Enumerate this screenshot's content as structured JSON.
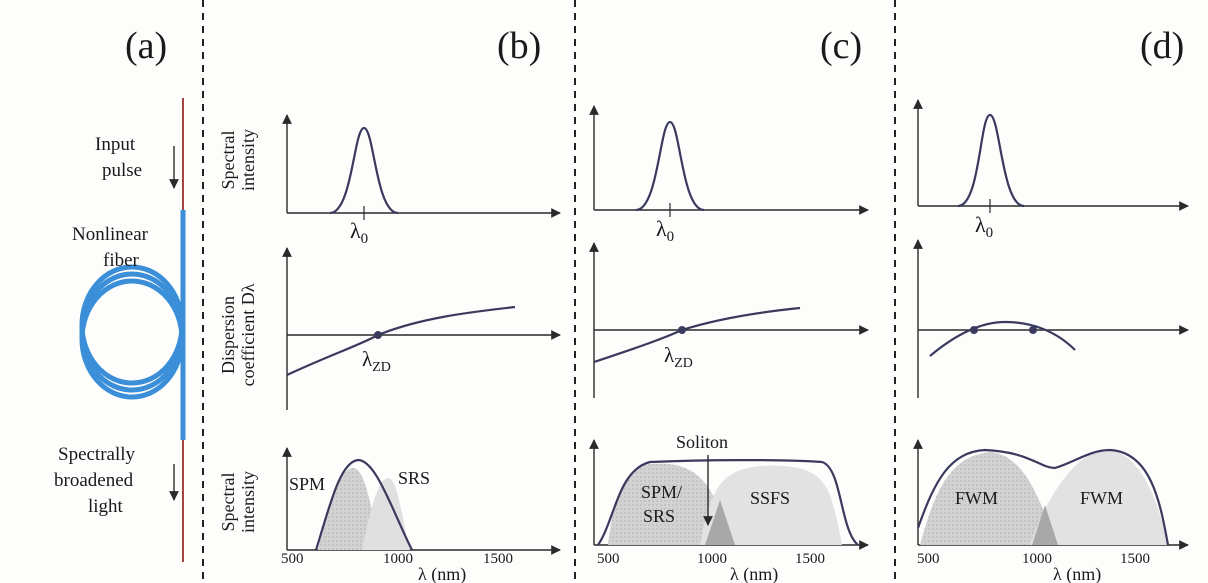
{
  "panels": {
    "a": {
      "label": "(a)",
      "input_pulse": [
        "Input",
        "pulse"
      ],
      "fiber": [
        "Nonlinear",
        "fiber"
      ],
      "output": [
        "Spectrally",
        "broadened",
        "light"
      ]
    },
    "b": {
      "label": "(b)",
      "lambda0": "λ0",
      "lambda_zd": "λZD",
      "region_left": "SPM",
      "region_right": "SRS"
    },
    "c": {
      "label": "(c)",
      "lambda0": "λ0",
      "lambda_zd": "λZD",
      "soliton": "Soliton",
      "region_left": [
        "SPM/",
        "SRS"
      ],
      "region_right": "SSFS"
    },
    "d": {
      "label": "(d)",
      "lambda0": "λ0",
      "region_left": "FWM",
      "region_right": "FWM"
    }
  },
  "axes": {
    "y_top": [
      "Spectral",
      "intensity"
    ],
    "y_mid": [
      "Dispersion",
      "coefficient Dλ"
    ],
    "y_bot": [
      "Spectral",
      "intensity"
    ],
    "x_label": "λ (nm)",
    "x_ticks": [
      "500",
      "1000",
      "1500"
    ]
  },
  "colors": {
    "fiber": "#3a8fd8",
    "fiber_line": "#a64444",
    "curve": "#3a3a5e",
    "fill": "#c9c9c9"
  }
}
